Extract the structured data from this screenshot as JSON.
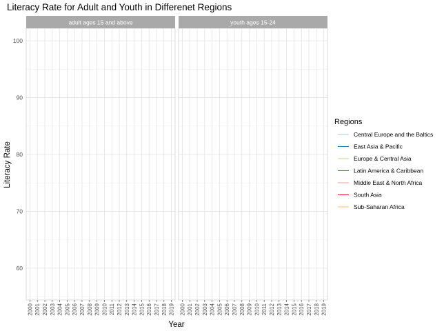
{
  "chart_data": {
    "type": "line",
    "title": "Literacy Rate for Adult and Youth in Differenet Regions",
    "xlabel": "Year",
    "ylabel": "Literacy Rate",
    "x": [
      "2000",
      "2001",
      "2002",
      "2003",
      "2004",
      "2005",
      "2006",
      "2007",
      "2008",
      "2009",
      "2010",
      "2011",
      "2012",
      "2013",
      "2014",
      "2015",
      "2016",
      "2017",
      "2018",
      "2019"
    ],
    "ylim": [
      54.4,
      102.2
    ],
    "yticks": [
      60,
      70,
      80,
      90,
      100
    ],
    "grid": true,
    "panels": [
      {
        "label": "adult ages 15 and above",
        "series": []
      },
      {
        "label": "youth ages 15-24",
        "series": []
      }
    ],
    "legend": {
      "title": "Regions",
      "placement": "right",
      "entries": [
        {
          "name": "Central Europe and the Baltics",
          "color": "#a6cee3"
        },
        {
          "name": "East Asia & Pacific",
          "color": "#1f78b4"
        },
        {
          "name": "Europe & Central Asia",
          "color": "#b2df8a"
        },
        {
          "name": "Latin America & Caribbean",
          "color": "#33a02c"
        },
        {
          "name": "Middle East & North Africa",
          "color": "#fb9a99"
        },
        {
          "name": "South Asia",
          "color": "#e31a1c"
        },
        {
          "name": "Sub-Saharan Africa",
          "color": "#fdbf6f"
        }
      ]
    }
  }
}
